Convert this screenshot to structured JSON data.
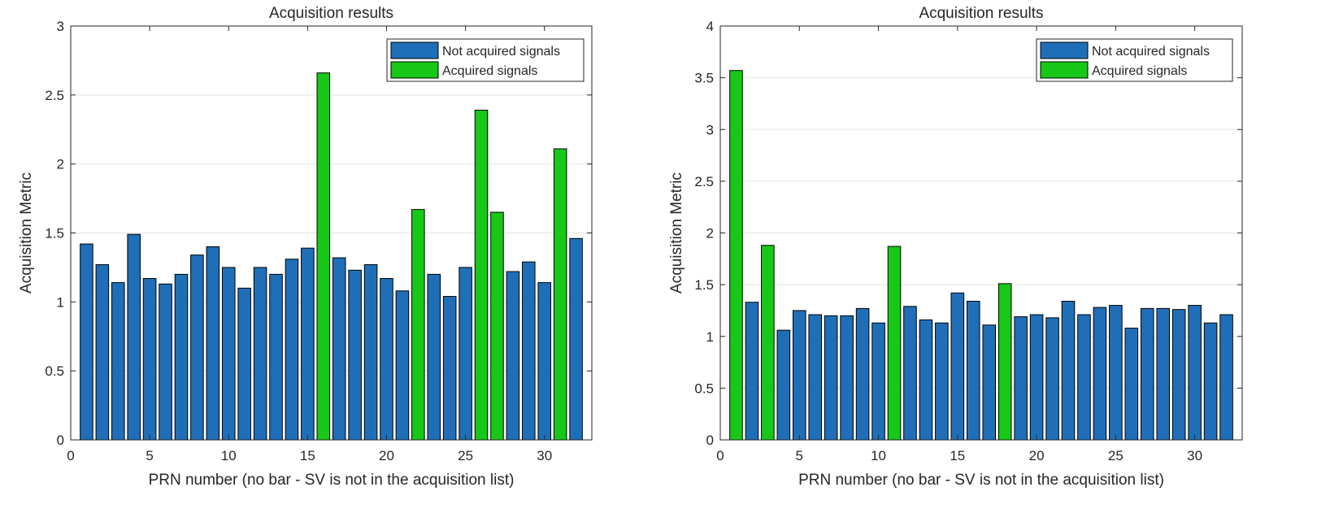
{
  "chart_data": [
    {
      "type": "bar",
      "title": "Acquisition results",
      "xlabel": "PRN number (no bar - SV is not in the acquisition list)",
      "ylabel": "Acquisition Metric",
      "xlim": [
        0,
        33
      ],
      "ylim": [
        0,
        3
      ],
      "xticks": [
        0,
        5,
        10,
        15,
        20,
        25,
        30
      ],
      "yticks": [
        0,
        0.5,
        1,
        1.5,
        2,
        2.5,
        3
      ],
      "grid": "horizontal",
      "legend_position": "top-right",
      "colors": {
        "not_acquired": "#1f6fb8",
        "acquired": "#18c818"
      },
      "series": [
        {
          "name": "Not acquired signals",
          "points": [
            [
              1,
              1.42
            ],
            [
              2,
              1.27
            ],
            [
              3,
              1.14
            ],
            [
              4,
              1.49
            ],
            [
              5,
              1.17
            ],
            [
              6,
              1.13
            ],
            [
              7,
              1.2
            ],
            [
              8,
              1.34
            ],
            [
              9,
              1.4
            ],
            [
              10,
              1.25
            ],
            [
              11,
              1.1
            ],
            [
              12,
              1.25
            ],
            [
              13,
              1.2
            ],
            [
              14,
              1.31
            ],
            [
              15,
              1.39
            ],
            [
              17,
              1.32
            ],
            [
              18,
              1.23
            ],
            [
              19,
              1.27
            ],
            [
              20,
              1.17
            ],
            [
              21,
              1.08
            ],
            [
              23,
              1.2
            ],
            [
              24,
              1.04
            ],
            [
              25,
              1.25
            ],
            [
              28,
              1.22
            ],
            [
              29,
              1.29
            ],
            [
              30,
              1.14
            ],
            [
              32,
              1.46
            ]
          ]
        },
        {
          "name": "Acquired signals",
          "points": [
            [
              16,
              2.66
            ],
            [
              22,
              1.67
            ],
            [
              26,
              2.39
            ],
            [
              27,
              1.65
            ],
            [
              31,
              2.11
            ]
          ]
        }
      ]
    },
    {
      "type": "bar",
      "title": "Acquisition results",
      "xlabel": "PRN number (no bar - SV is not in the acquisition list)",
      "ylabel": "Acquisition Metric",
      "xlim": [
        0,
        33
      ],
      "ylim": [
        0,
        4
      ],
      "xticks": [
        0,
        5,
        10,
        15,
        20,
        25,
        30
      ],
      "yticks": [
        0,
        0.5,
        1,
        1.5,
        2,
        2.5,
        3,
        3.5,
        4
      ],
      "grid": "horizontal",
      "legend_position": "top-right",
      "colors": {
        "not_acquired": "#1f6fb8",
        "acquired": "#18c818"
      },
      "series": [
        {
          "name": "Not acquired signals",
          "points": [
            [
              2,
              1.33
            ],
            [
              4,
              1.06
            ],
            [
              5,
              1.25
            ],
            [
              6,
              1.21
            ],
            [
              7,
              1.2
            ],
            [
              8,
              1.2
            ],
            [
              9,
              1.27
            ],
            [
              10,
              1.13
            ],
            [
              12,
              1.29
            ],
            [
              13,
              1.16
            ],
            [
              14,
              1.13
            ],
            [
              15,
              1.42
            ],
            [
              16,
              1.34
            ],
            [
              17,
              1.11
            ],
            [
              19,
              1.19
            ],
            [
              20,
              1.21
            ],
            [
              21,
              1.18
            ],
            [
              22,
              1.34
            ],
            [
              23,
              1.21
            ],
            [
              24,
              1.28
            ],
            [
              25,
              1.3
            ],
            [
              26,
              1.08
            ],
            [
              27,
              1.27
            ],
            [
              28,
              1.27
            ],
            [
              29,
              1.26
            ],
            [
              30,
              1.3
            ],
            [
              31,
              1.13
            ],
            [
              32,
              1.21
            ]
          ]
        },
        {
          "name": "Acquired signals",
          "points": [
            [
              1,
              3.57
            ],
            [
              3,
              1.88
            ],
            [
              11,
              1.87
            ],
            [
              18,
              1.51
            ]
          ]
        }
      ]
    }
  ]
}
